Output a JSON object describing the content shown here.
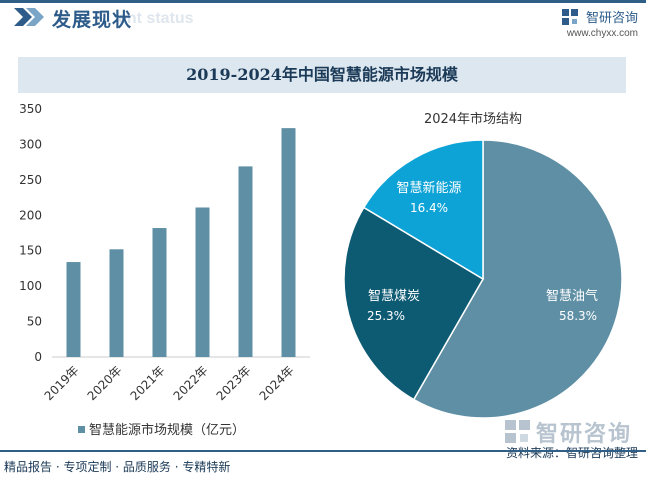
{
  "header": {
    "title": "发展现状",
    "subtitle": "ent status",
    "brand_name": "智研咨询",
    "brand_url": "www.chyxx.com"
  },
  "chart_title": "2019-2024年中国智慧能源市场规模",
  "colors": {
    "bar": "#5f8fa5",
    "pie_oil": "#5f8fa5",
    "pie_coal": "#0d5a73",
    "pie_new": "#0ea3d6",
    "accent": "#2e5c8a"
  },
  "chart_data": [
    {
      "type": "bar",
      "categories": [
        "2019年",
        "2020年",
        "2021年",
        "2022年",
        "2023年",
        "2024年"
      ],
      "series": [
        {
          "name": "智慧能源市场规模（亿元）",
          "values": [
            134,
            152,
            182,
            211,
            269,
            323
          ]
        }
      ],
      "ylim": [
        0,
        350
      ],
      "yticks": [
        0,
        50,
        100,
        150,
        200,
        250,
        300,
        350
      ],
      "grid": false,
      "legend": "bottom"
    },
    {
      "type": "pie",
      "title": "2024年市场结构",
      "slices": [
        {
          "label": "智慧油气",
          "value": 58.3,
          "value_label": "58.3%"
        },
        {
          "label": "智慧煤炭",
          "value": 25.3,
          "value_label": "25.3%"
        },
        {
          "label": "智慧新能源",
          "value": 16.4,
          "value_label": "16.4%"
        }
      ]
    }
  ],
  "footer": {
    "left": "精品报告 · 专项定制 · 品质服务 · 专精特新",
    "source": "资料来源：智研咨询整理",
    "watermark": "智研咨询"
  }
}
